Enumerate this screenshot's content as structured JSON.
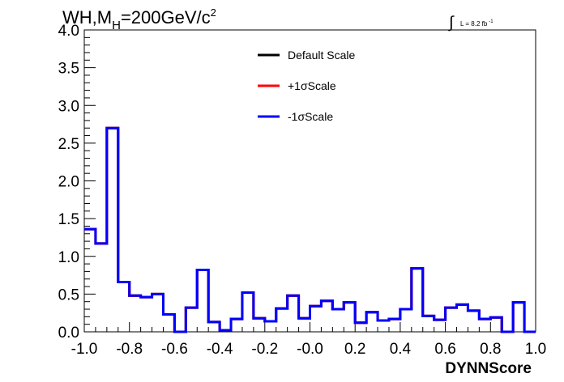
{
  "title_parts": {
    "a": "WH,M",
    "sub": "H",
    "b": "=200GeV/c",
    "sup": "2"
  },
  "lumi": {
    "integral": "∫",
    "text": "L = 8.2 fb",
    "sup": "-1"
  },
  "chart_data": {
    "type": "line",
    "style": "step-histogram",
    "xlabel": "DYNNScore",
    "ylabel": "",
    "xlim": [
      -1.0,
      1.0
    ],
    "ylim": [
      0.0,
      4.0
    ],
    "x_ticks": [
      "-1.0",
      "-0.8",
      "-0.6",
      "-0.4",
      "-0.2",
      "-0.0",
      "0.2",
      "0.4",
      "0.6",
      "0.8",
      "1.0"
    ],
    "y_ticks": [
      "0.0",
      "0.5",
      "1.0",
      "1.5",
      "2.0",
      "2.5",
      "3.0",
      "3.5",
      "4.0"
    ],
    "bin_edges": [
      -1.0,
      -0.95,
      -0.9,
      -0.85,
      -0.8,
      -0.75,
      -0.7,
      -0.65,
      -0.6,
      -0.55,
      -0.5,
      -0.45,
      -0.4,
      -0.35,
      -0.3,
      -0.25,
      -0.2,
      -0.15,
      -0.1,
      -0.05,
      0.0,
      0.05,
      0.1,
      0.15,
      0.2,
      0.25,
      0.3,
      0.35,
      0.4,
      0.45,
      0.5,
      0.55,
      0.6,
      0.65,
      0.7,
      0.75,
      0.8,
      0.85,
      0.9,
      0.95,
      1.0
    ],
    "series": [
      {
        "name": "Default Scale",
        "color": "#000000",
        "values": [
          1.36,
          1.17,
          2.7,
          0.66,
          0.48,
          0.46,
          0.5,
          0.23,
          0.0,
          0.32,
          0.82,
          0.13,
          0.02,
          0.17,
          0.52,
          0.18,
          0.14,
          0.31,
          0.48,
          0.18,
          0.34,
          0.41,
          0.3,
          0.39,
          0.12,
          0.26,
          0.15,
          0.17,
          0.3,
          0.84,
          0.21,
          0.16,
          0.32,
          0.36,
          0.28,
          0.17,
          0.19,
          0.0,
          0.39,
          0.0
        ]
      },
      {
        "name": "+1σScale",
        "color": "#ff0000",
        "values": [
          1.36,
          1.17,
          2.7,
          0.66,
          0.48,
          0.46,
          0.5,
          0.23,
          0.0,
          0.32,
          0.82,
          0.13,
          0.02,
          0.17,
          0.52,
          0.18,
          0.14,
          0.31,
          0.48,
          0.18,
          0.34,
          0.41,
          0.3,
          0.39,
          0.12,
          0.26,
          0.15,
          0.17,
          0.3,
          0.84,
          0.21,
          0.16,
          0.32,
          0.36,
          0.28,
          0.17,
          0.19,
          0.0,
          0.39,
          0.0
        ]
      },
      {
        "name": "-1σScale",
        "color": "#0000ff",
        "values": [
          1.36,
          1.17,
          2.7,
          0.66,
          0.48,
          0.46,
          0.5,
          0.23,
          0.0,
          0.32,
          0.82,
          0.13,
          0.02,
          0.17,
          0.52,
          0.18,
          0.14,
          0.31,
          0.48,
          0.18,
          0.34,
          0.41,
          0.3,
          0.39,
          0.12,
          0.26,
          0.15,
          0.17,
          0.3,
          0.84,
          0.21,
          0.16,
          0.32,
          0.36,
          0.28,
          0.17,
          0.19,
          0.0,
          0.39,
          0.0
        ]
      }
    ],
    "grid": false,
    "legend_position": "top-right"
  }
}
